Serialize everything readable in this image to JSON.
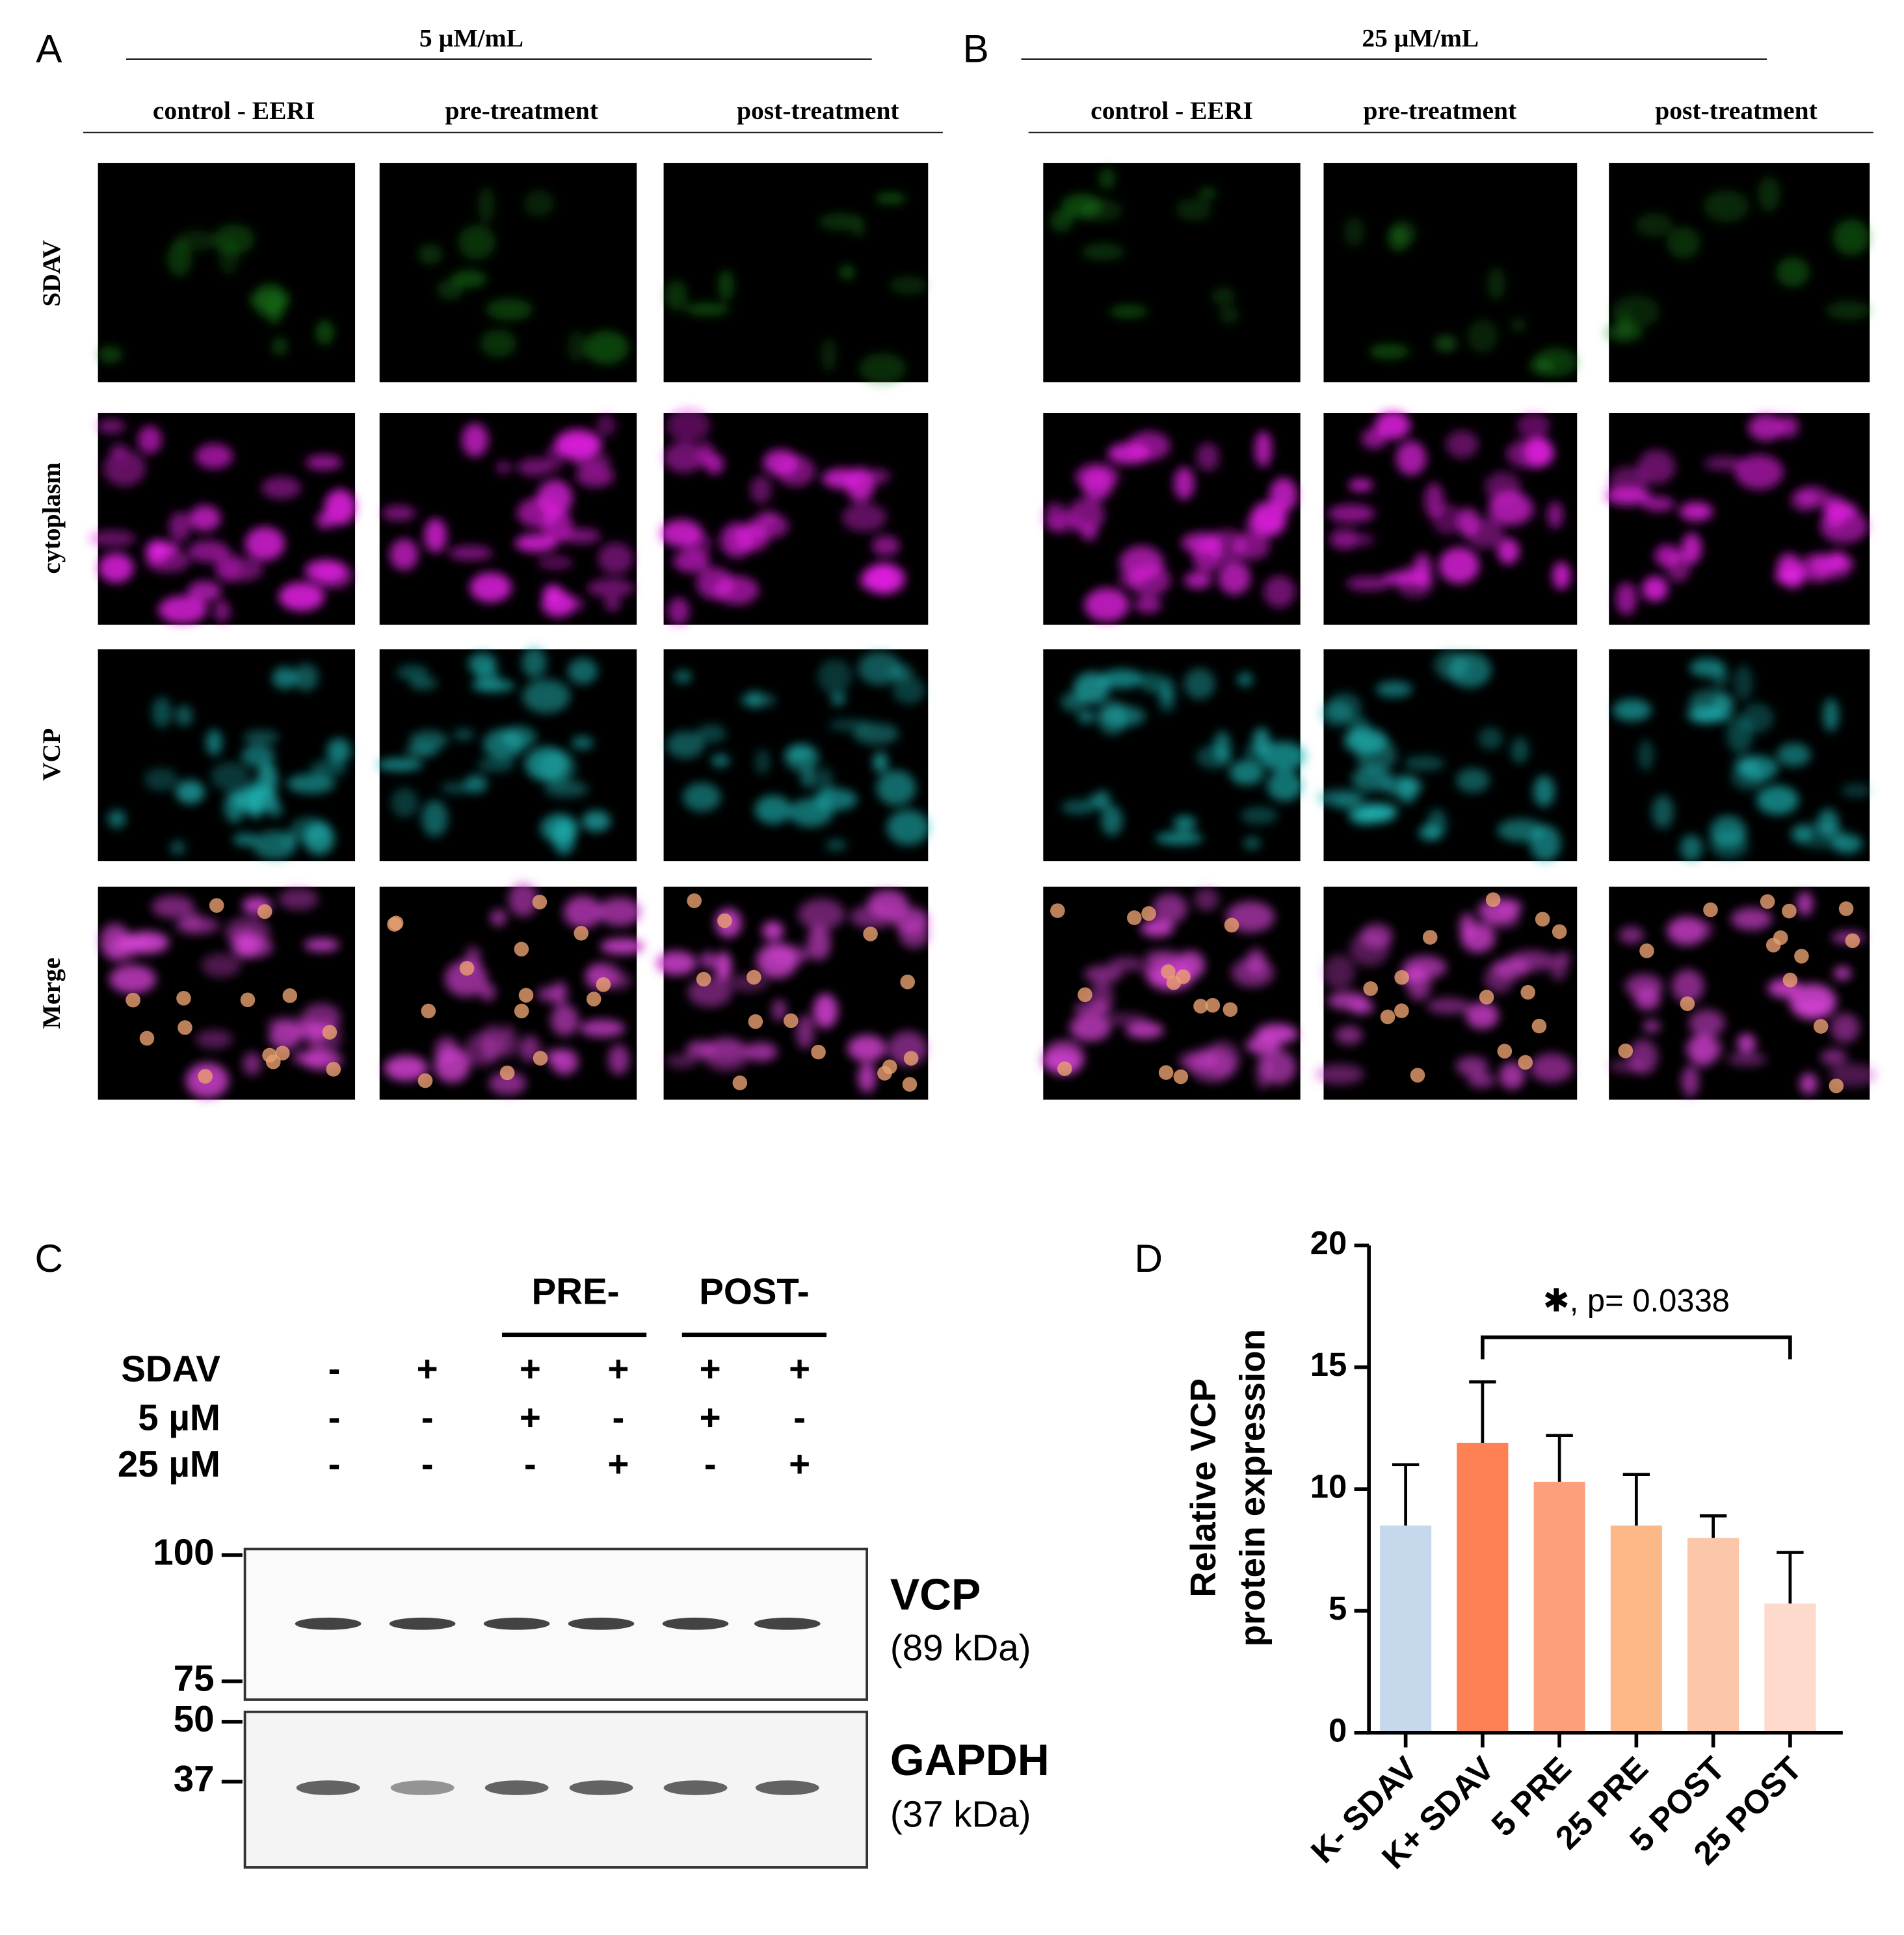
{
  "panel_a": {
    "letter": "A",
    "concentration": "5 µM/mL",
    "columns": [
      "control - EERI",
      "pre-treatment",
      "post-treatment"
    ],
    "rows": [
      "SDAV",
      "cytoplasm",
      "VCP",
      "Merge"
    ]
  },
  "panel_b": {
    "letter": "B",
    "concentration": "25 µM/mL",
    "columns": [
      "control - EERI",
      "pre-treatment",
      "post-treatment"
    ],
    "rows": []
  },
  "panel_c": {
    "letter": "C",
    "groups": [
      "PRE-",
      "POST-"
    ],
    "conditions": [
      {
        "label": "SDAV",
        "signs": [
          "-",
          "+",
          "+",
          "+",
          "+",
          "+"
        ]
      },
      {
        "label": "5 µM",
        "signs": [
          "-",
          "-",
          "+",
          "-",
          "+",
          "-"
        ]
      },
      {
        "label": "25 µM",
        "signs": [
          "-",
          "-",
          "-",
          "+",
          "-",
          "+"
        ]
      }
    ],
    "markers": [
      "100",
      "75",
      "50",
      "37"
    ],
    "blots": [
      {
        "name": "VCP",
        "size": "(89 kDa)"
      },
      {
        "name": "GAPDH",
        "size": "(37 kDa)"
      }
    ]
  },
  "chart_data": {
    "type": "bar",
    "letter": "D",
    "ylabel": [
      "Relative VCP",
      "protein expression"
    ],
    "categories": [
      "K- SDAV",
      "K+ SDAV",
      "5 PRE",
      "25 PRE",
      "5 POST",
      "25 POST"
    ],
    "values": [
      8.5,
      11.9,
      10.3,
      8.5,
      8.0,
      5.3
    ],
    "errors": [
      2.5,
      2.5,
      1.9,
      2.1,
      0.9,
      2.1
    ],
    "colors": [
      "#c6d9ec",
      "#fd8155",
      "#fca07c",
      "#fdb888",
      "#fcc7a9",
      "#fddacb"
    ],
    "ylim": [
      0,
      20
    ],
    "yticks": [
      0,
      5,
      10,
      15,
      20
    ],
    "annotation": "✱, p= 0.0338"
  }
}
